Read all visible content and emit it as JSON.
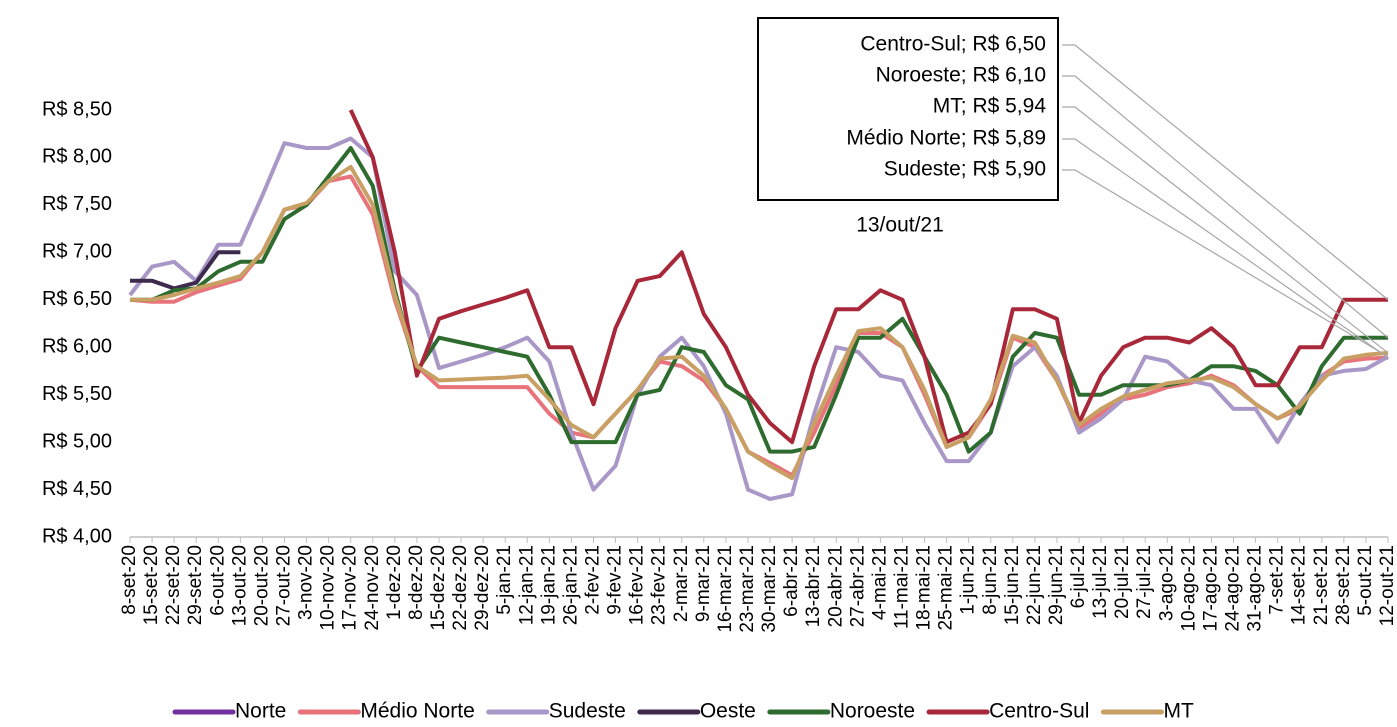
{
  "chart_data": {
    "type": "line",
    "categories": [
      "8-set-20",
      "15-set-20",
      "22-set-20",
      "29-set-20",
      "6-out-20",
      "13-out-20",
      "20-out-20",
      "27-out-20",
      "3-nov-20",
      "10-nov-20",
      "17-nov-20",
      "24-nov-20",
      "1-dez-20",
      "8-dez-20",
      "15-dez-20",
      "22-dez-20",
      "29-dez-20",
      "5-jan-21",
      "12-jan-21",
      "19-jan-21",
      "26-jan-21",
      "2-fev-21",
      "9-fev-21",
      "16-fev-21",
      "23-fev-21",
      "2-mar-21",
      "9-mar-21",
      "16-mar-21",
      "23-mar-21",
      "30-mar-21",
      "6-abr-21",
      "13-abr-21",
      "20-abr-21",
      "27-abr-21",
      "4-mai-21",
      "11-mai-21",
      "18-mai-21",
      "25-mai-21",
      "1-jun-21",
      "8-jun-21",
      "15-jun-21",
      "22-jun-21",
      "29-jun-21",
      "6-jul-21",
      "13-jul-21",
      "20-jul-21",
      "27-jul-21",
      "3-ago-21",
      "10-ago-21",
      "17-ago-21",
      "24-ago-21",
      "31-ago-21",
      "7-set-21",
      "14-set-21",
      "21-set-21",
      "28-set-21",
      "5-out-21",
      "12-out-21"
    ],
    "ylim": [
      4,
      8.5
    ],
    "yticks": [
      {
        "value": 4,
        "label": "R$ 4,00"
      },
      {
        "value": 4.5,
        "label": "R$ 4,50"
      },
      {
        "value": 5,
        "label": "R$ 5,00"
      },
      {
        "value": 5.5,
        "label": "R$ 5,50"
      },
      {
        "value": 6,
        "label": "R$ 6,00"
      },
      {
        "value": 6.5,
        "label": "R$ 6,50"
      },
      {
        "value": 7,
        "label": "R$ 7,00"
      },
      {
        "value": 7.5,
        "label": "R$ 7,50"
      },
      {
        "value": 8,
        "label": "R$ 8,00"
      },
      {
        "value": 8.5,
        "label": "R$ 8,50"
      }
    ],
    "grid": false,
    "legend": "bottom",
    "series": [
      {
        "name": "Norte",
        "color": "#7030a0",
        "values": [
          null,
          null,
          null,
          null,
          null,
          null,
          null,
          null,
          null,
          null,
          null,
          null,
          null,
          null,
          null,
          null,
          null,
          null,
          null,
          null,
          null,
          null,
          null,
          null,
          null,
          null,
          null,
          null,
          null,
          null,
          null,
          null,
          null,
          null,
          null,
          null,
          null,
          null,
          null,
          null,
          null,
          null,
          null,
          null,
          null,
          null,
          null,
          null,
          null,
          null,
          null,
          null,
          null,
          null,
          null,
          null,
          null,
          null
        ]
      },
      {
        "name": "Médio Norte",
        "color": "#e8737a",
        "values": [
          6.5,
          6.48,
          6.48,
          6.58,
          6.65,
          6.72,
          7.0,
          7.45,
          7.5,
          7.75,
          7.8,
          7.4,
          6.5,
          5.8,
          5.58,
          5.58,
          5.58,
          5.58,
          5.58,
          5.3,
          5.1,
          5.05,
          5.3,
          5.55,
          5.85,
          5.8,
          5.65,
          5.35,
          4.9,
          4.78,
          4.65,
          5.1,
          5.6,
          6.15,
          6.15,
          6.0,
          5.5,
          4.95,
          5.05,
          5.4,
          6.1,
          6.0,
          5.65,
          5.15,
          5.3,
          5.45,
          5.5,
          5.58,
          5.62,
          5.7,
          5.6,
          5.4,
          5.25,
          5.35,
          5.7,
          5.85,
          5.88,
          5.89
        ]
      },
      {
        "name": "Sudeste",
        "color": "#a997c8",
        "values": [
          6.55,
          6.85,
          6.9,
          6.7,
          7.08,
          7.08,
          7.6,
          8.15,
          8.1,
          8.1,
          8.2,
          8.0,
          6.8,
          6.55,
          5.78,
          5.85,
          5.92,
          6.0,
          6.1,
          5.85,
          5.1,
          4.5,
          4.75,
          5.5,
          5.9,
          6.1,
          5.8,
          5.3,
          4.5,
          4.4,
          4.45,
          5.3,
          6.0,
          5.95,
          5.7,
          5.65,
          5.2,
          4.8,
          4.8,
          5.1,
          5.8,
          6.0,
          5.7,
          5.1,
          5.25,
          5.45,
          5.9,
          5.85,
          5.65,
          5.6,
          5.35,
          5.35,
          5.0,
          5.4,
          5.7,
          5.75,
          5.77,
          5.9
        ]
      },
      {
        "name": "Oeste",
        "color": "#3d2a4c",
        "values": [
          6.7,
          6.7,
          6.62,
          6.68,
          7.0,
          7.0,
          null,
          null,
          null,
          null,
          null,
          null,
          null,
          null,
          null,
          null,
          null,
          null,
          null,
          null,
          null,
          null,
          null,
          null,
          null,
          null,
          null,
          null,
          null,
          null,
          null,
          null,
          null,
          null,
          null,
          null,
          null,
          null,
          null,
          null,
          null,
          null,
          null,
          null,
          null,
          null,
          null,
          null,
          null,
          null,
          null,
          null,
          null,
          null,
          null,
          null,
          null,
          null
        ]
      },
      {
        "name": "Noroeste",
        "color": "#2e6b2e",
        "values": [
          6.5,
          6.5,
          6.6,
          6.62,
          6.8,
          6.9,
          6.9,
          7.35,
          7.5,
          7.8,
          8.1,
          7.7,
          6.6,
          5.75,
          6.1,
          6.05,
          6.0,
          5.95,
          5.9,
          5.5,
          5.0,
          5.0,
          5.0,
          5.5,
          5.55,
          6.0,
          5.95,
          5.6,
          5.45,
          4.9,
          4.9,
          4.95,
          5.5,
          6.1,
          6.1,
          6.3,
          5.9,
          5.5,
          4.9,
          5.1,
          5.9,
          6.15,
          6.1,
          5.5,
          5.5,
          5.6,
          5.6,
          5.6,
          5.65,
          5.8,
          5.8,
          5.75,
          5.6,
          5.3,
          5.8,
          6.1,
          6.1,
          6.1
        ]
      },
      {
        "name": "Centro-Sul",
        "color": "#a8283a",
        "values": [
          null,
          null,
          null,
          null,
          null,
          null,
          null,
          null,
          null,
          null,
          8.5,
          8.0,
          7.0,
          5.7,
          6.3,
          6.38,
          6.45,
          6.52,
          6.6,
          6.0,
          6.0,
          5.4,
          6.2,
          6.7,
          6.75,
          7.0,
          6.35,
          6.0,
          5.5,
          5.2,
          5.0,
          5.8,
          6.4,
          6.4,
          6.6,
          6.5,
          5.9,
          5.0,
          5.1,
          5.4,
          6.4,
          6.4,
          6.3,
          5.2,
          5.7,
          6.0,
          6.1,
          6.1,
          6.05,
          6.2,
          6.0,
          5.6,
          5.6,
          6.0,
          6.0,
          6.5,
          6.5,
          6.5
        ]
      },
      {
        "name": "MT",
        "color": "#c9a064",
        "values": [
          6.5,
          6.5,
          6.55,
          6.62,
          6.68,
          6.75,
          7.0,
          7.45,
          7.52,
          7.75,
          7.9,
          7.5,
          6.55,
          5.8,
          5.65,
          5.66,
          5.67,
          5.68,
          5.7,
          5.45,
          5.18,
          5.05,
          5.3,
          5.55,
          5.88,
          5.9,
          5.7,
          5.35,
          4.9,
          4.75,
          4.62,
          5.2,
          5.7,
          6.17,
          6.2,
          6.0,
          5.55,
          4.95,
          5.05,
          5.45,
          6.12,
          6.05,
          5.65,
          5.18,
          5.35,
          5.48,
          5.55,
          5.62,
          5.65,
          5.68,
          5.58,
          5.4,
          5.25,
          5.38,
          5.65,
          5.88,
          5.92,
          5.94
        ]
      }
    ],
    "annotations": [
      "Centro-Sul; R$ 6,50",
      "Noroeste; R$ 6,10",
      "MT; R$ 5,94",
      "Médio Norte; R$ 5,89",
      "Sudeste; R$ 5,90"
    ],
    "annotation_caption": "13/out/21"
  }
}
